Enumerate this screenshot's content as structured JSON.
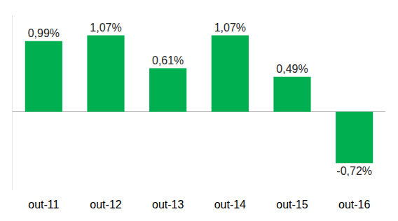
{
  "chart_data": {
    "type": "bar",
    "categories": [
      "out-11",
      "out-12",
      "out-13",
      "out-14",
      "out-15",
      "out-16"
    ],
    "values": [
      0.99,
      1.07,
      0.61,
      1.07,
      0.49,
      -0.72
    ],
    "value_labels": [
      "0,99%",
      "1,07%",
      "0,61%",
      "1,07%",
      "0,49%",
      "-0,72%"
    ],
    "color": "#00b050",
    "ylim": [
      -1.1,
      1.35
    ],
    "grid": false,
    "data_labels": true,
    "tick_labels": "x"
  }
}
